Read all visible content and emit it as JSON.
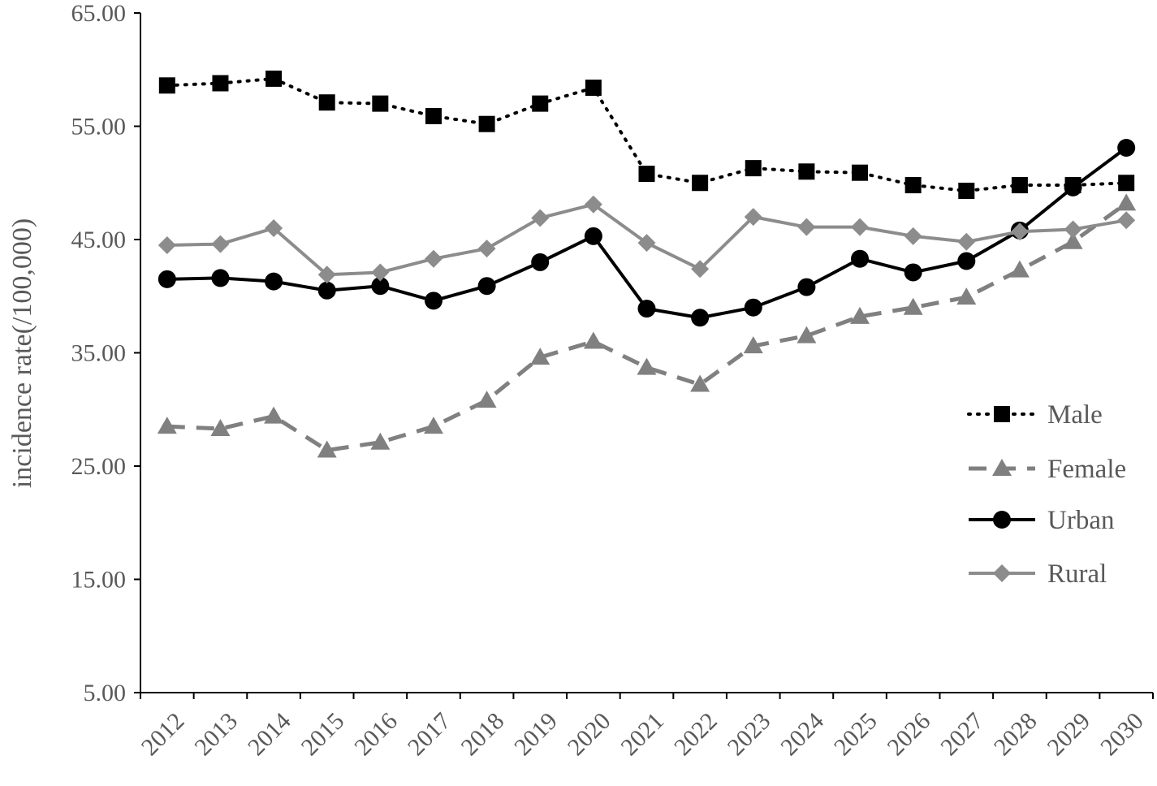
{
  "chart_data": {
    "type": "line",
    "title": "",
    "xlabel": "",
    "ylabel": "incidence rate(/100,000)",
    "x": [
      "2012",
      "2013",
      "2014",
      "2015",
      "2016",
      "2017",
      "2018",
      "2019",
      "2020",
      "2021",
      "2022",
      "2023",
      "2024",
      "2025",
      "2026",
      "2027",
      "2028",
      "2029",
      "2030"
    ],
    "yticks": [
      "5.00",
      "15.00",
      "25.00",
      "35.00",
      "45.00",
      "55.00",
      "65.00"
    ],
    "ylim": [
      5,
      65
    ],
    "grid": false,
    "legend_position": "right",
    "series": [
      {
        "name": "Male",
        "line": "dotted",
        "marker": "square",
        "color": "#000000",
        "values": [
          58.6,
          58.8,
          59.2,
          57.1,
          57.0,
          55.9,
          55.2,
          57.0,
          58.4,
          50.8,
          50.0,
          51.3,
          51.0,
          50.9,
          49.8,
          49.3,
          49.8,
          49.8,
          50.0
        ]
      },
      {
        "name": "Female",
        "line": "dashed",
        "marker": "triangle",
        "color": "#808080",
        "values": [
          28.5,
          28.3,
          29.4,
          26.4,
          27.1,
          28.5,
          30.8,
          34.6,
          36.0,
          33.7,
          32.2,
          35.6,
          36.5,
          38.2,
          39.0,
          39.9,
          42.3,
          44.8,
          48.2
        ]
      },
      {
        "name": "Urban",
        "line": "solid",
        "marker": "circle",
        "color": "#000000",
        "values": [
          41.5,
          41.6,
          41.3,
          40.5,
          40.9,
          39.6,
          40.9,
          43.0,
          45.3,
          38.9,
          38.1,
          39.0,
          40.8,
          43.3,
          42.1,
          43.1,
          45.8,
          49.6,
          53.1
        ]
      },
      {
        "name": "Rural",
        "line": "solid",
        "marker": "diamond",
        "color": "#8c8c8c",
        "values": [
          44.5,
          44.6,
          46.0,
          41.9,
          42.1,
          43.3,
          44.2,
          46.9,
          48.1,
          44.7,
          42.4,
          47.0,
          46.1,
          46.1,
          45.3,
          44.8,
          45.7,
          45.9,
          46.7
        ]
      }
    ]
  }
}
